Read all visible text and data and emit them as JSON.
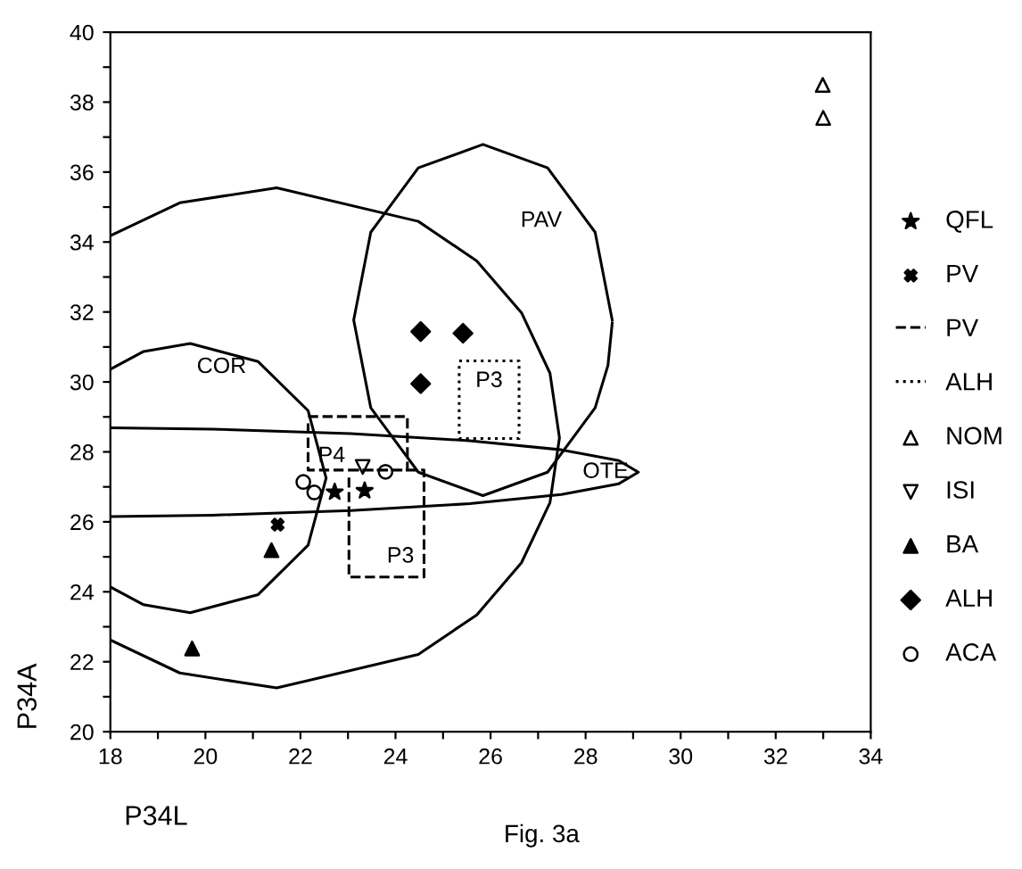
{
  "chart_data": {
    "type": "scatter",
    "xlabel": "P34L",
    "ylabel": "P34A",
    "xlim": [
      18,
      34
    ],
    "ylim": [
      20,
      40
    ],
    "xticks": [
      18,
      {
        "value": 19,
        "label": null
      },
      20,
      {
        "value": 21,
        "label": null
      },
      22,
      {
        "value": 23,
        "label": null
      },
      24,
      {
        "value": 25,
        "label": null
      },
      26,
      {
        "value": 27,
        "label": null
      },
      28,
      {
        "value": 29,
        "label": null
      },
      30,
      {
        "value": 31,
        "label": null
      },
      32,
      {
        "value": 33,
        "label": null
      },
      34
    ],
    "yticks": [
      20,
      {
        "value": 21,
        "label": null
      },
      22,
      {
        "value": 23,
        "label": null
      },
      24,
      {
        "value": 25,
        "label": null
      },
      26,
      {
        "value": 27,
        "label": null
      },
      28,
      {
        "value": 29,
        "label": null
      },
      30,
      {
        "value": 31,
        "label": null
      },
      32,
      {
        "value": 33,
        "label": null
      },
      34,
      {
        "value": 35,
        "label": null
      },
      36,
      {
        "value": 37,
        "label": null
      },
      38,
      {
        "value": 39,
        "label": null
      },
      40
    ],
    "grid": false,
    "legend": "right",
    "series": [
      {
        "type": "line",
        "line_style": "solid",
        "color": "#000000",
        "x": [
          18.0,
          18.7,
          19.68,
          21.11,
          22.16,
          22.54,
          22.16,
          21.11,
          19.68,
          18.7,
          18.0
        ],
        "values": [
          30.36,
          30.87,
          31.1,
          30.58,
          29.18,
          27.25,
          25.33,
          23.92,
          23.4,
          23.63,
          24.14
        ]
      },
      {
        "type": "line",
        "line_style": "solid",
        "color": "#000000",
        "x": [
          18.0,
          19.46,
          21.5,
          24.48,
          25.71,
          26.65,
          27.25,
          27.45,
          27.25,
          26.65,
          25.71,
          24.48,
          21.5,
          19.46,
          18.0
        ],
        "values": [
          34.18,
          35.12,
          35.55,
          34.59,
          33.46,
          31.98,
          30.25,
          28.4,
          26.55,
          24.83,
          23.34,
          22.21,
          21.25,
          21.68,
          22.62
        ]
      },
      {
        "type": "line",
        "line_style": "solid",
        "color": "#000000",
        "x": [
          28.56,
          28.2,
          27.2,
          25.84,
          24.48,
          23.48,
          23.12,
          23.48,
          24.48,
          25.84,
          27.2,
          28.2,
          28.47,
          28.56
        ],
        "values": [
          31.77,
          34.28,
          36.12,
          36.79,
          36.12,
          34.28,
          31.77,
          29.26,
          27.42,
          26.75,
          27.42,
          29.26,
          30.47,
          31.68
        ]
      },
      {
        "type": "line",
        "line_style": "solid",
        "color": "#000000",
        "x": [
          18.0,
          20.14,
          23.06,
          25.56,
          27.49,
          28.7,
          29.11,
          28.7,
          27.49,
          25.56,
          23.06,
          20.14,
          18.0
        ],
        "values": [
          28.69,
          28.65,
          28.52,
          28.32,
          28.06,
          27.75,
          27.42,
          27.09,
          26.78,
          26.52,
          26.32,
          26.19,
          26.15
        ]
      },
      {
        "name": "QFL",
        "marker": "star",
        "color": "#000000",
        "x": [
          22.72,
          23.35
        ],
        "values": [
          26.85,
          26.89
        ]
      },
      {
        "name": "PV",
        "marker": "cross",
        "color": "#000000",
        "x": [
          21.52
        ],
        "values": [
          25.92
        ]
      },
      {
        "name": "PV",
        "type": "line",
        "line_style": "dashed",
        "color": "#000000",
        "x": [
          22.16,
          24.25,
          24.25,
          22.16,
          22.16,
          null,
          23.02,
          24.6,
          24.6,
          23.02,
          23.02
        ],
        "values": [
          29.01,
          29.01,
          27.48,
          27.48,
          28.9,
          null,
          27.48,
          27.48,
          24.42,
          24.42,
          27.35
        ]
      },
      {
        "name": "ALH",
        "type": "line",
        "line_style": "dotted",
        "color": "#000000",
        "x": [
          25.34,
          26.6,
          26.6,
          25.34,
          25.34
        ],
        "values": [
          30.6,
          30.6,
          28.38,
          28.38,
          30.5
        ]
      },
      {
        "name": "NOM",
        "marker": "triangle-open",
        "color": "#000000",
        "x": [
          32.99,
          33.0
        ],
        "values": [
          38.49,
          37.55
        ]
      },
      {
        "name": "ISI",
        "marker": "triangle-down-open",
        "color": "#000000",
        "x": [
          23.31
        ],
        "values": [
          27.57
        ]
      },
      {
        "name": "BA",
        "marker": "triangle",
        "color": "#000000",
        "x": [
          21.39,
          19.72
        ],
        "values": [
          25.19,
          22.38
        ]
      },
      {
        "name": "ALH",
        "marker": "diamond",
        "color": "#000000",
        "x": [
          24.53,
          25.42,
          24.53
        ],
        "values": [
          31.44,
          31.39,
          29.95
        ]
      },
      {
        "name": "ACA",
        "marker": "circle-open",
        "color": "#000000",
        "x": [
          22.06,
          22.29,
          23.79
        ],
        "values": [
          27.14,
          26.84,
          27.43
        ]
      }
    ],
    "annotations": [
      {
        "text": "COR",
        "x": 20.34,
        "y": 31.0
      },
      {
        "text": "PAV",
        "x": 27.71,
        "y": 35.18
      },
      {
        "text": "OTE",
        "x": 29.11,
        "y": 27.42
      },
      {
        "text": "P4",
        "x": 22.16,
        "y": 28.45
      },
      {
        "text": "P3",
        "x": 24.6,
        "y": 24.42
      },
      {
        "text": "P3",
        "x": 25.97,
        "y": 30.6
      },
      "Fig. 3a"
    ]
  }
}
